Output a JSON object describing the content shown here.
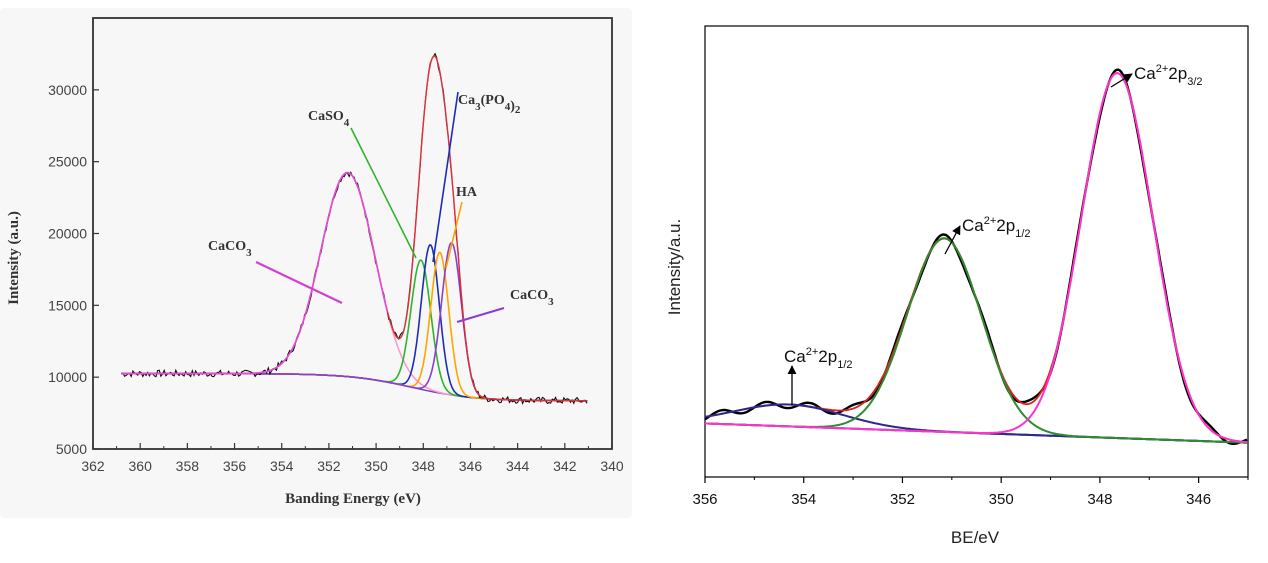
{
  "chart_data": [
    {
      "type": "line",
      "xlabel": "Banding Energy (eV)",
      "ylabel": "Intensity (a.u.)",
      "xlim": [
        362,
        340
      ],
      "ylim": [
        5000,
        35000
      ],
      "x_ticks": [
        "362",
        "360",
        "358",
        "356",
        "354",
        "352",
        "350",
        "348",
        "346",
        "344",
        "342",
        "340"
      ],
      "y_ticks": [
        "5000",
        "10000",
        "15000",
        "20000",
        "25000",
        "30000"
      ],
      "background": 10200,
      "series": [
        {
          "name": "CaCO3",
          "type": "gaussian",
          "center": 351.2,
          "height": 14200,
          "sigma": 1.15,
          "color": "#ff9ad1"
        },
        {
          "name": "CaSO4",
          "type": "gaussian",
          "center": 348.1,
          "height": 9000,
          "sigma": 0.42,
          "color": "#2db52d"
        },
        {
          "name": "Ca3(PO4)2",
          "type": "gaussian",
          "center": 347.7,
          "height": 10200,
          "sigma": 0.38,
          "color": "#1a2fb5"
        },
        {
          "name": "HA",
          "type": "gaussian",
          "center": 347.3,
          "height": 9800,
          "sigma": 0.38,
          "color": "#ffa500"
        },
        {
          "name": "CaCO3",
          "type": "gaussian",
          "center": 346.8,
          "height": 10600,
          "sigma": 0.42,
          "color": "#8b3fd1"
        }
      ],
      "labels": [
        {
          "key": "caco3_left",
          "text": "CaCO",
          "sub": "3"
        },
        {
          "key": "caso4",
          "text": "CaSO",
          "sub": "4"
        },
        {
          "key": "ca3po4",
          "text": "Ca",
          "sub": "3",
          "text2": "(PO",
          "sub2": "4",
          "text3": ")",
          "sub3": "2"
        },
        {
          "key": "ha",
          "text": "HA"
        },
        {
          "key": "caco3_right",
          "text": "CaCO",
          "sub": "3"
        }
      ]
    },
    {
      "type": "line",
      "xlabel": "BE/eV",
      "ylabel": "Intensity/a.u.",
      "xlim": [
        356,
        345
      ],
      "x_ticks": [
        "356",
        "354",
        "352",
        "350",
        "348",
        "346"
      ],
      "series": [
        {
          "name": "Ca2+ 2p1/2",
          "type": "gaussian",
          "center": 354.3,
          "height": 0.06,
          "sigma": 1.1,
          "color": "#2a2a8a"
        },
        {
          "name": "Ca2+ 2p1/2",
          "type": "gaussian",
          "center": 351.15,
          "height": 0.53,
          "sigma": 0.75,
          "color": "#2e8b2e"
        },
        {
          "name": "Ca2+ 2p3/2",
          "type": "gaussian",
          "center": 347.65,
          "height": 1.0,
          "sigma": 0.72,
          "color": "#ff33cc"
        }
      ],
      "labels": [
        {
          "key": "ca_354",
          "text": "Ca",
          "sup": "2+",
          "text2": "2p",
          "sub": "1/2"
        },
        {
          "key": "ca_351",
          "text": "Ca",
          "sup": "2+",
          "text2": "2p",
          "sub": "1/2"
        },
        {
          "key": "ca_348",
          "text": "Ca",
          "sup": "2+",
          "text2": "2p",
          "sub": "3/2"
        }
      ]
    }
  ]
}
